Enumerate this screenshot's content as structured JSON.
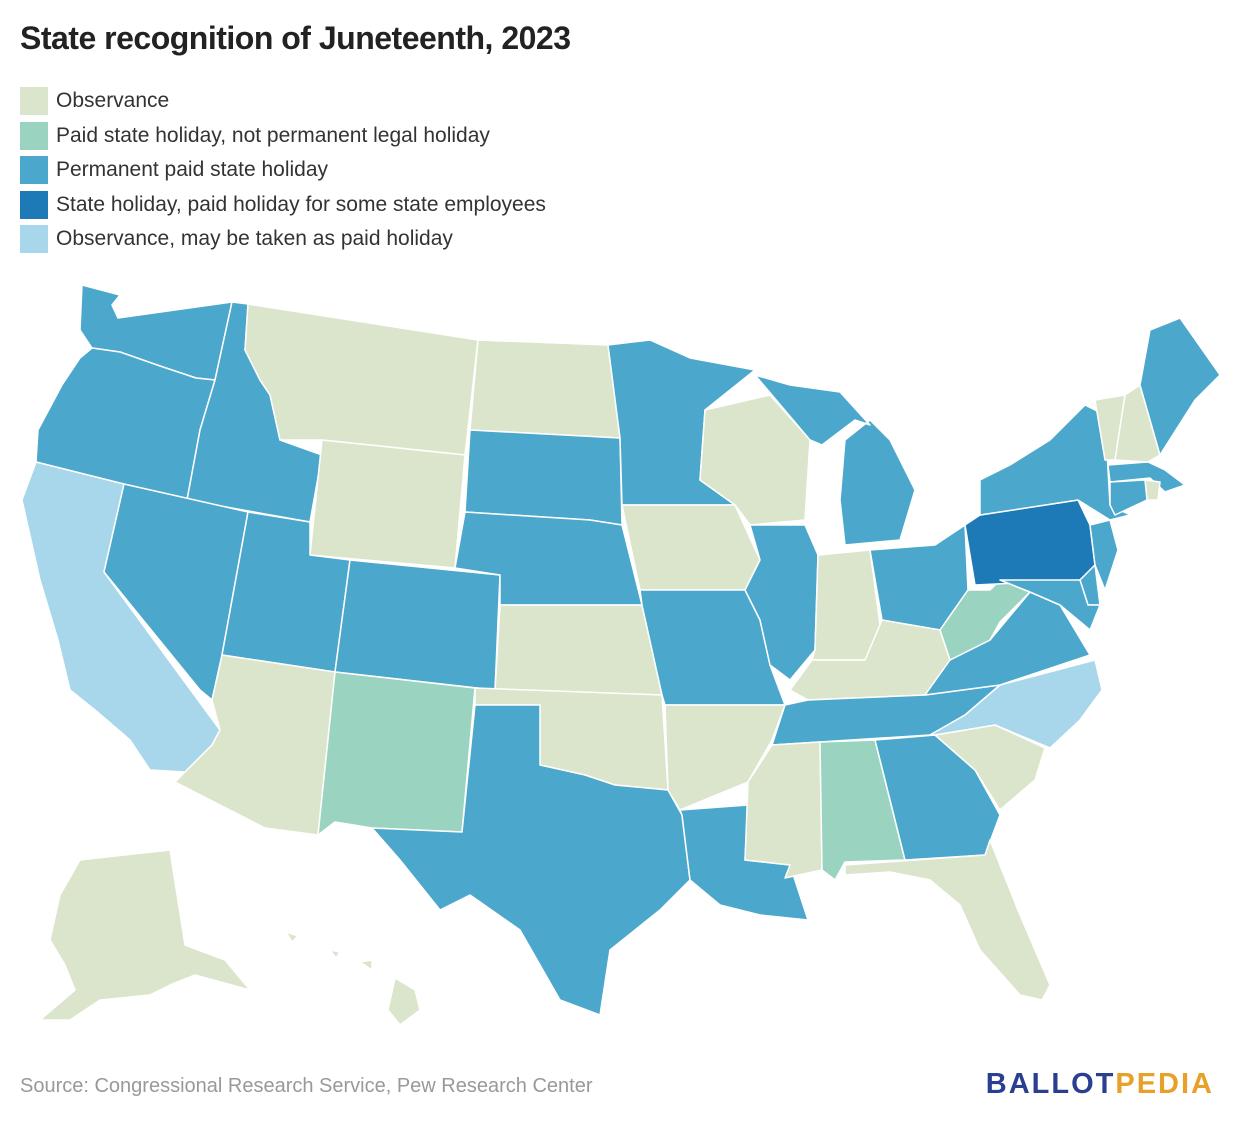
{
  "title": "State recognition of Juneteenth, 2023",
  "legend": [
    {
      "label": "Observance",
      "color": "#dae5cb"
    },
    {
      "label": "Paid state holiday, not permanent legal holiday",
      "color": "#9bd3c1"
    },
    {
      "label": "Permanent paid state holiday",
      "color": "#4ba7cb"
    },
    {
      "label": "State holiday, paid holiday for some state employees",
      "color": "#1d7ab6"
    },
    {
      "label": "Observance, may be taken as paid holiday",
      "color": "#a8d6ea"
    }
  ],
  "states": {
    "WA": 2,
    "OR": 2,
    "CA": 4,
    "ID": 2,
    "NV": 2,
    "MT": 0,
    "WY": 0,
    "UT": 2,
    "AZ": 0,
    "CO": 2,
    "NM": 1,
    "ND": 0,
    "SD": 2,
    "NE": 2,
    "KS": 0,
    "OK": 0,
    "TX": 2,
    "MN": 2,
    "IA": 0,
    "MO": 2,
    "AR": 0,
    "LA": 2,
    "WI": 0,
    "IL": 2,
    "MI": 2,
    "IN": 0,
    "OH": 2,
    "KY": 0,
    "TN": 2,
    "MS": 0,
    "AL": 1,
    "GA": 2,
    "FL": 0,
    "SC": 0,
    "NC": 4,
    "VA": 2,
    "WV": 1,
    "PA": 3,
    "NY": 2,
    "VT": 0,
    "NH": 0,
    "ME": 2,
    "MA": 2,
    "RI": 0,
    "CT": 2,
    "NJ": 2,
    "DE": 2,
    "MD": 2,
    "AK": 0,
    "HI": 0
  },
  "source": "Source: Congressional Research Service, Pew Research Center",
  "logo": {
    "part1": "BALLOT",
    "part2": "PEDIA"
  }
}
